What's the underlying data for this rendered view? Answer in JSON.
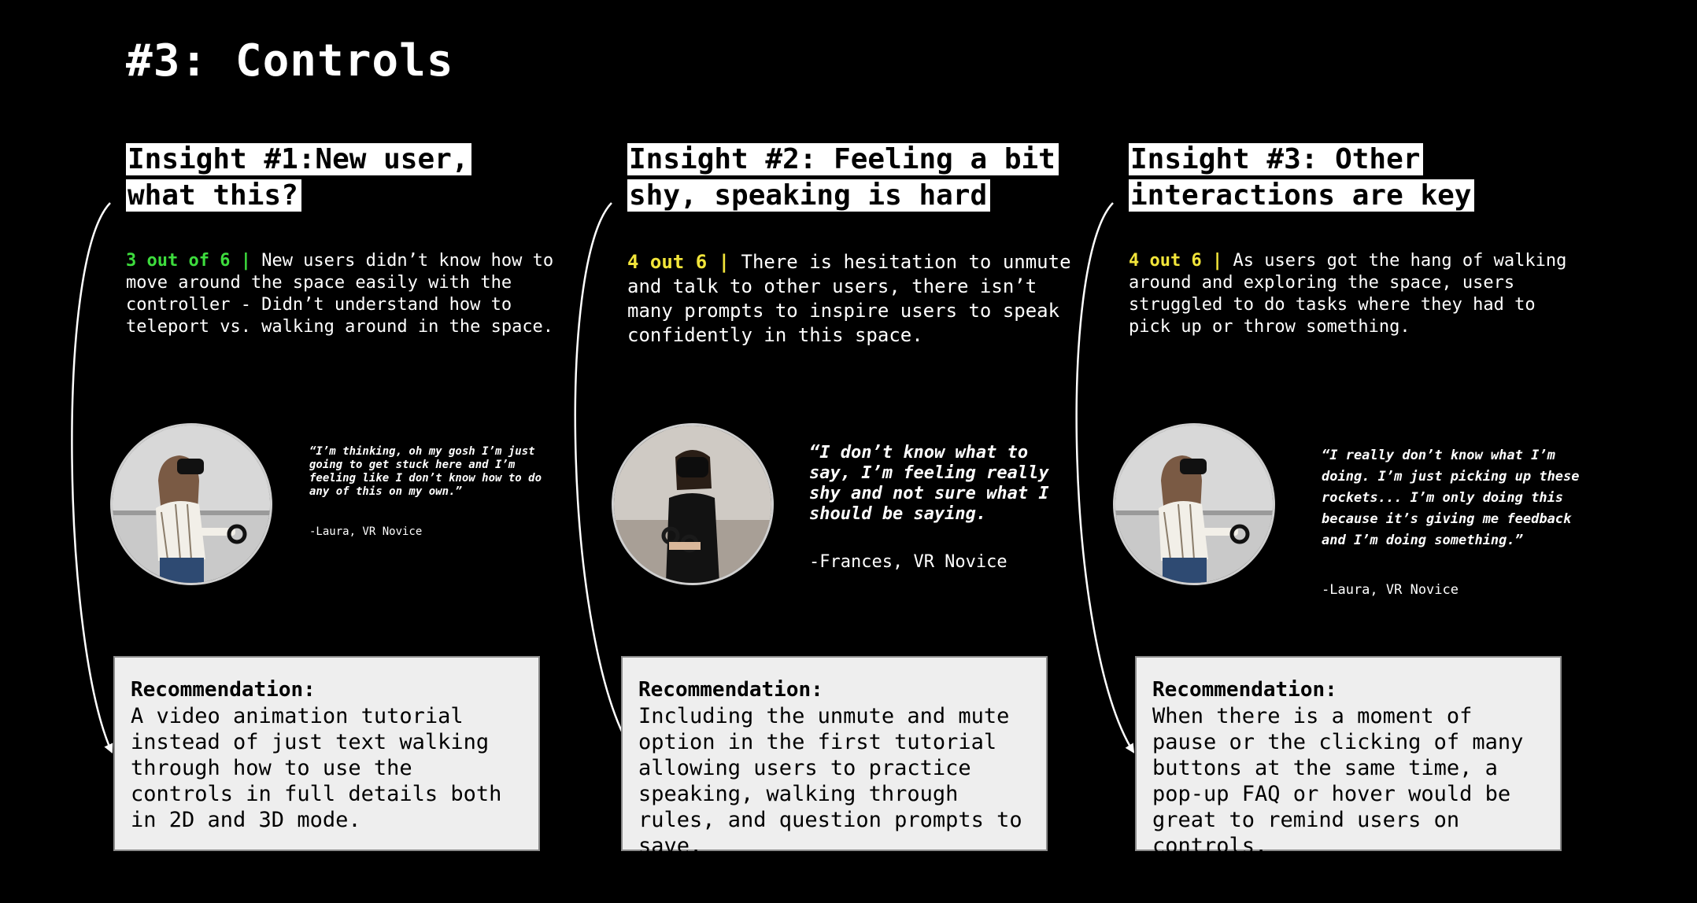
{
  "page": {
    "title": "#3: Controls"
  },
  "colors": {
    "background": "#000000",
    "text": "#ffffff",
    "stat_green": "#3ddc3d",
    "stat_yellow": "#f2e53a",
    "rec_box_bg": "#eeeeee",
    "rec_box_border": "#8a8a8a"
  },
  "insights": [
    {
      "heading": "Insight #1:New user, what this?",
      "stat": "3 out of 6 |",
      "stat_color": "green",
      "body": "New users didn’t know how to move around the space easily with the controller - Didn’t understand how to teleport vs. walking around in the space.",
      "photo": "vr-user-photo",
      "quote": "“I’m thinking, oh my gosh I’m just going to get stuck here and I’m feeling like I don’t know how to do any of this on my own.”",
      "attribution": "-Laura, VR Novice",
      "recommendation_title": "Recommendation:",
      "recommendation": "A video animation tutorial instead of just text walking through how to use the controls in full details both in 2D and 3D mode."
    },
    {
      "heading": "Insight #2: Feeling a bit shy, speaking is hard",
      "stat": "4 out 6 |",
      "stat_color": "yellow",
      "body": "There is hesitation to unmute and talk to other users, there isn’t many prompts to inspire users to speak confidently in this space.",
      "photo": "vr-user-photo",
      "quote": "“I don’t know what to say, I’m feeling really shy and not sure what I should be saying.",
      "attribution": "-Frances, VR Novice",
      "recommendation_title": "Recommendation:",
      "recommendation": "Including the unmute and mute option in the first tutorial allowing users to practice speaking, walking through rules, and question prompts to save."
    },
    {
      "heading": "Insight #3: Other interactions are key",
      "stat": "4 out 6 |",
      "stat_color": "yellow",
      "body": "As users got the hang of walking around and exploring the space, users struggled to do tasks where they had to pick up or throw something.",
      "photo": "vr-user-photo",
      "quote": "“I really don’t know what I’m doing. I’m just picking up these rockets... I’m only doing this because it’s giving me feedback and I’m doing something.”",
      "attribution": "-Laura, VR Novice",
      "recommendation_title": "Recommendation:",
      "recommendation": "When there is a moment of pause or the clicking of many buttons at the same time, a pop-up FAQ or hover would be great to remind users on controls."
    }
  ]
}
